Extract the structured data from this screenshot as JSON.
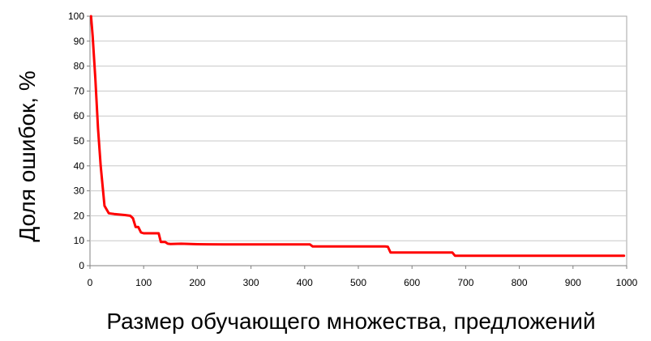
{
  "chart_data": {
    "type": "line",
    "title": "",
    "xlabel": "Размер обучающего множества, предложений",
    "ylabel": "Доля ошибок, %",
    "xlim": [
      0,
      1000
    ],
    "ylim": [
      0,
      100
    ],
    "xticks": [
      "0",
      "100",
      "200",
      "300",
      "400",
      "500",
      "600",
      "700",
      "800",
      "900",
      "1000"
    ],
    "yticks": [
      "0",
      "10",
      "20",
      "30",
      "40",
      "50",
      "60",
      "70",
      "80",
      "90",
      "100"
    ],
    "grid": "horizontal",
    "legend": "none",
    "series": [
      {
        "color": "#ff0000",
        "x": [
          2,
          5,
          10,
          15,
          20,
          27,
          35,
          45,
          55,
          65,
          75,
          80,
          85,
          90,
          95,
          100,
          110,
          120,
          128,
          132,
          140,
          145,
          150,
          170,
          200,
          250,
          300,
          350,
          400,
          410,
          415,
          450,
          500,
          550,
          555,
          560,
          600,
          650,
          670,
          675,
          680,
          700,
          750,
          800,
          850,
          900,
          950,
          995
        ],
        "y": [
          100,
          92,
          75,
          55,
          40,
          24,
          21,
          20.7,
          20.5,
          20.3,
          20,
          19,
          15.5,
          15.5,
          13.3,
          13,
          13,
          13,
          13,
          9.5,
          9.5,
          8.8,
          8.7,
          8.8,
          8.6,
          8.5,
          8.5,
          8.5,
          8.5,
          8.5,
          7.7,
          7.7,
          7.7,
          7.7,
          7.6,
          5.3,
          5.3,
          5.3,
          5.3,
          5.3,
          4,
          4,
          4,
          4,
          4,
          4,
          4,
          4
        ]
      }
    ]
  }
}
